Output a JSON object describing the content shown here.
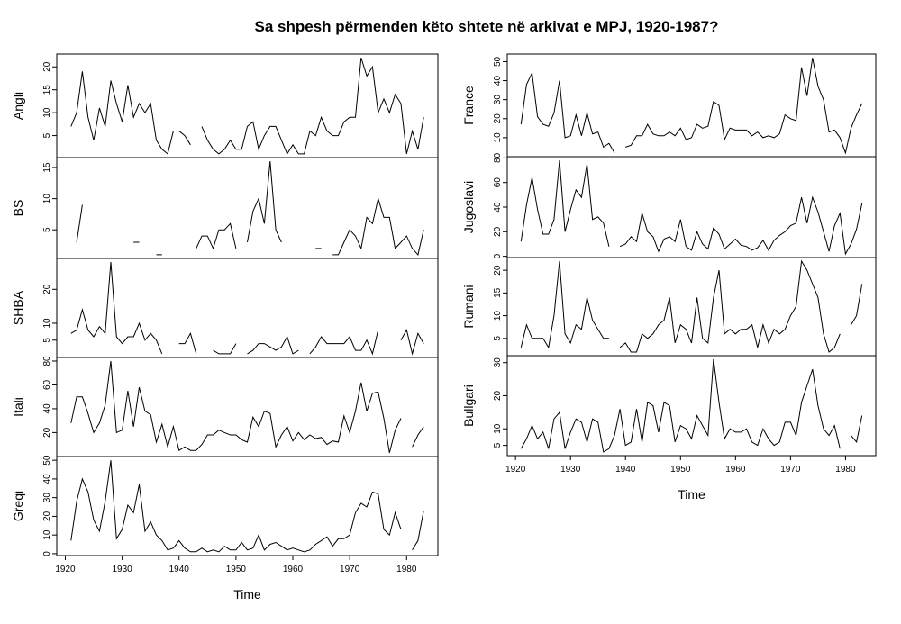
{
  "chart_data": {
    "type": "line",
    "title": "Sa shpesh përmenden këto shtete në arkivat e MPJ, 1920-1987?",
    "xlabel": "Time",
    "x_start": 1921,
    "x_end": 1983,
    "xlim": [
      1918.5,
      1985.5
    ],
    "xticks": [
      1920,
      1930,
      1940,
      1950,
      1960,
      1970,
      1980
    ],
    "grid": false,
    "columns": [
      [
        {
          "name": "Angli",
          "ylim": [
            0.2,
            22.8
          ],
          "yticks": [
            5,
            10,
            15,
            20
          ],
          "values": [
            7,
            10,
            19,
            9,
            4,
            11,
            7,
            17,
            12,
            8,
            16,
            9,
            12,
            10,
            12,
            4,
            2,
            1,
            6,
            6,
            5,
            3,
            null,
            7,
            4,
            2,
            1,
            2,
            4,
            2,
            2,
            7,
            8,
            2,
            5,
            7,
            7,
            4,
            1,
            3,
            1,
            1,
            6,
            5,
            9,
            6,
            5,
            5,
            8,
            9,
            9,
            22,
            18,
            20,
            10,
            13,
            10,
            14,
            12,
            1,
            6,
            2,
            9
          ]
        },
        {
          "name": "BS",
          "ylim": [
            0.4,
            16.6
          ],
          "yticks": [
            5,
            10,
            15
          ],
          "values": [
            null,
            3,
            9,
            null,
            null,
            null,
            null,
            null,
            null,
            null,
            null,
            3,
            3,
            null,
            null,
            1,
            1,
            null,
            null,
            null,
            null,
            null,
            2,
            4,
            4,
            2,
            5,
            5,
            6,
            2,
            null,
            3,
            8,
            10,
            6,
            16,
            5,
            3,
            null,
            null,
            null,
            null,
            null,
            2,
            2,
            null,
            1,
            1,
            3,
            5,
            4,
            2,
            7,
            6,
            10,
            7,
            7,
            2,
            3,
            4,
            2,
            1,
            5
          ]
        },
        {
          "name": "SHBA",
          "ylim": [
            -0.1,
            29.1
          ],
          "yticks": [
            5,
            10,
            20
          ],
          "values": [
            7,
            8,
            14,
            8,
            6,
            9,
            7,
            28,
            6,
            4,
            6,
            6,
            10,
            5,
            7,
            5,
            1,
            null,
            null,
            4,
            4,
            7,
            1,
            null,
            null,
            2,
            1,
            1,
            1,
            4,
            null,
            1,
            2,
            4,
            4,
            3,
            2,
            3,
            6,
            1,
            2,
            null,
            1,
            3,
            6,
            4,
            4,
            4,
            4,
            6,
            2,
            2,
            5,
            1,
            8,
            null,
            null,
            null,
            5,
            8,
            1,
            7,
            4
          ]
        },
        {
          "name": "Itali",
          "ylim": [
            -0.1,
            83
          ],
          "yticks": [
            20,
            40,
            60,
            80
          ],
          "values": [
            28,
            50,
            50,
            36,
            20,
            28,
            43,
            80,
            20,
            22,
            55,
            25,
            58,
            38,
            35,
            12,
            27,
            8,
            25,
            5,
            8,
            5,
            5,
            10,
            18,
            18,
            22,
            20,
            18,
            18,
            14,
            12,
            33,
            25,
            38,
            36,
            8,
            18,
            25,
            13,
            20,
            14,
            18,
            15,
            16,
            10,
            13,
            12,
            34,
            20,
            38,
            62,
            38,
            53,
            54,
            32,
            3,
            22,
            32,
            null,
            8,
            18,
            25
          ]
        },
        {
          "name": "Greqi",
          "ylim": [
            -1,
            52
          ],
          "yticks": [
            0,
            10,
            20,
            30,
            40,
            50
          ],
          "values": [
            7,
            28,
            40,
            33,
            18,
            12,
            28,
            50,
            8,
            13,
            26,
            22,
            37,
            12,
            17,
            10,
            7,
            2,
            3,
            7,
            3,
            1,
            1,
            3,
            1,
            2,
            1,
            4,
            2,
            2,
            6,
            2,
            3,
            10,
            2,
            5,
            6,
            4,
            2,
            3,
            2,
            1,
            2,
            5,
            7,
            9,
            4,
            8,
            8,
            10,
            22,
            27,
            25,
            33,
            32,
            13,
            10,
            22,
            13,
            null,
            2,
            7,
            23
          ]
        }
      ],
      [
        {
          "name": "France",
          "ylim": [
            0,
            54
          ],
          "yticks": [
            10,
            20,
            30,
            40,
            50
          ],
          "values": [
            17,
            38,
            44,
            21,
            17,
            16,
            23,
            40,
            10,
            11,
            22,
            11,
            23,
            12,
            13,
            5,
            7,
            2,
            null,
            5,
            6,
            11,
            11,
            17,
            12,
            11,
            11,
            13,
            11,
            15,
            9,
            10,
            17,
            15,
            16,
            29,
            27,
            9,
            15,
            14,
            14,
            14,
            11,
            13,
            10,
            11,
            10,
            12,
            22,
            20,
            19,
            47,
            32,
            52,
            37,
            30,
            13,
            14,
            10,
            2,
            15,
            22,
            28
          ]
        },
        {
          "name": "Jugoslavi",
          "ylim": [
            -1,
            81
          ],
          "yticks": [
            0,
            20,
            40,
            60,
            80
          ],
          "values": [
            12,
            42,
            64,
            38,
            18,
            18,
            30,
            78,
            20,
            38,
            54,
            48,
            75,
            30,
            32,
            27,
            8,
            null,
            8,
            10,
            16,
            12,
            35,
            20,
            16,
            4,
            14,
            16,
            12,
            30,
            8,
            5,
            20,
            10,
            6,
            23,
            18,
            6,
            10,
            14,
            9,
            8,
            5,
            7,
            13,
            5,
            13,
            17,
            20,
            25,
            27,
            48,
            27,
            48,
            36,
            20,
            4,
            25,
            35,
            2,
            10,
            22,
            43
          ]
        },
        {
          "name": "Rumani",
          "ylim": [
            1.2,
            22.8
          ],
          "yticks": [
            5,
            10,
            15,
            20
          ],
          "values": [
            3,
            8,
            5,
            5,
            5,
            3,
            10,
            22,
            6,
            4,
            8,
            7,
            14,
            9,
            7,
            5,
            5,
            null,
            3,
            4,
            2,
            2,
            6,
            5,
            6,
            8,
            9,
            14,
            4,
            8,
            7,
            4,
            14,
            5,
            4,
            14,
            20,
            6,
            7,
            6,
            7,
            7,
            8,
            3,
            8,
            4,
            7,
            6,
            7,
            10,
            12,
            22,
            20,
            17,
            14,
            6,
            2,
            3,
            6,
            null,
            8,
            10,
            17
          ]
        },
        {
          "name": "Bullgari",
          "ylim": [
            1.9,
            32.1
          ],
          "yticks": [
            5,
            10,
            20,
            30
          ],
          "values": [
            4,
            7,
            11,
            7,
            9,
            4,
            13,
            15,
            4,
            9,
            13,
            12,
            6,
            13,
            12,
            3,
            4,
            8,
            16,
            5,
            6,
            16,
            6,
            18,
            17,
            9,
            18,
            17,
            6,
            11,
            10,
            7,
            14,
            11,
            8,
            31,
            18,
            7,
            10,
            9,
            9,
            10,
            6,
            5,
            10,
            7,
            5,
            6,
            12,
            12,
            8,
            18,
            23,
            28,
            17,
            10,
            8,
            11,
            4,
            null,
            8,
            6,
            14
          ]
        }
      ]
    ]
  }
}
